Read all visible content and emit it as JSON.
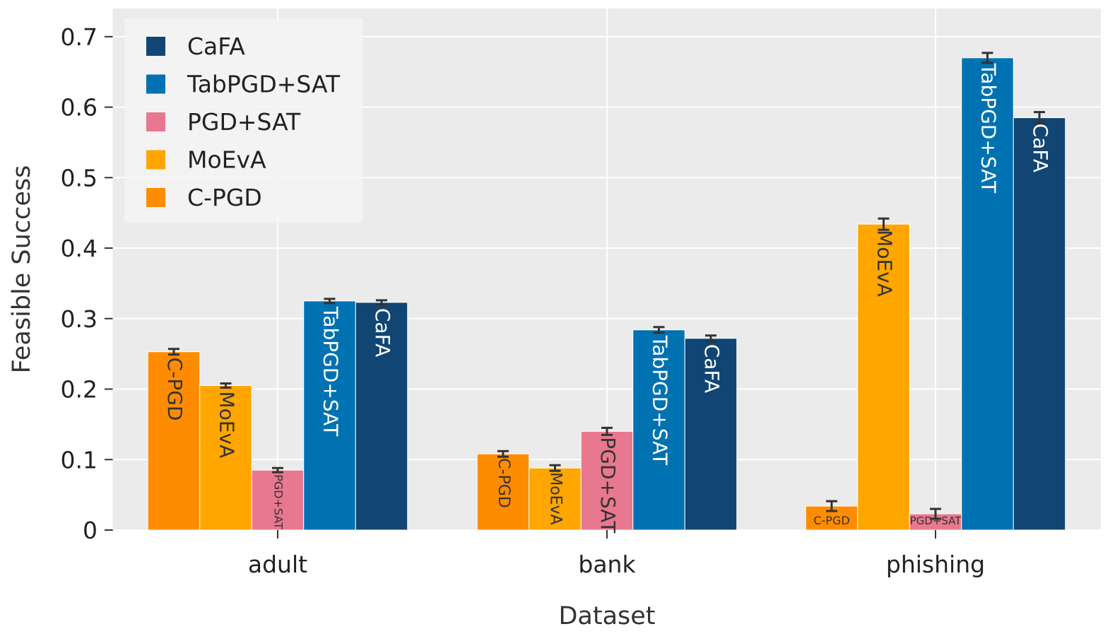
{
  "chart_data": {
    "type": "bar",
    "title": "",
    "xlabel": "Dataset",
    "ylabel": "Feasible Success",
    "ylim": [
      0,
      0.74
    ],
    "yticks": [
      {
        "value": 0,
        "label": "0"
      },
      {
        "value": 0.1,
        "label": "0.1"
      },
      {
        "value": 0.2,
        "label": "0.2"
      },
      {
        "value": 0.3,
        "label": "0.3"
      },
      {
        "value": 0.4,
        "label": "0.4"
      },
      {
        "value": 0.5,
        "label": "0.5"
      },
      {
        "value": 0.6,
        "label": "0.6"
      },
      {
        "value": 0.7,
        "label": "0.7"
      }
    ],
    "grid": true,
    "legend_position": "top-left",
    "categories": [
      "adult",
      "bank",
      "phishing"
    ],
    "series": [
      {
        "name": "C-PGD",
        "color": "#ff8c00",
        "values": [
          0.253,
          0.108,
          0.034
        ],
        "errors": [
          0.004,
          0.004,
          0.007
        ]
      },
      {
        "name": "MoEvA",
        "color": "#ffa600",
        "values": [
          0.205,
          0.088,
          0.434
        ],
        "errors": [
          0.003,
          0.004,
          0.008
        ]
      },
      {
        "name": "PGD+SAT",
        "color": "#e8788f",
        "values": [
          0.085,
          0.14,
          0.023
        ],
        "errors": [
          0.003,
          0.005,
          0.007
        ]
      },
      {
        "name": "TabPGD+SAT",
        "color": "#0072b2",
        "values": [
          0.325,
          0.284,
          0.67
        ],
        "errors": [
          0.003,
          0.004,
          0.007
        ]
      },
      {
        "name": "CaFA",
        "color": "#114674",
        "values": [
          0.323,
          0.272,
          0.585
        ],
        "errors": [
          0.003,
          0.004,
          0.008
        ]
      }
    ],
    "legend_order": [
      "CaFA",
      "TabPGD+SAT",
      "PGD+SAT",
      "MoEvA",
      "C-PGD"
    ],
    "bar_labels": [
      [
        "C-PGD",
        "MoEvA",
        "PGD+SAT",
        "TabPGD+SAT",
        "CaFA"
      ],
      [
        "C-PGD",
        "MoEvA",
        "PGD+SAT",
        "TabPGD+SAT",
        "CaFA"
      ],
      [
        "C-PGD",
        "MoEvA",
        "PGD+SAT",
        "TabPGD+SAT",
        "CaFA"
      ]
    ]
  }
}
